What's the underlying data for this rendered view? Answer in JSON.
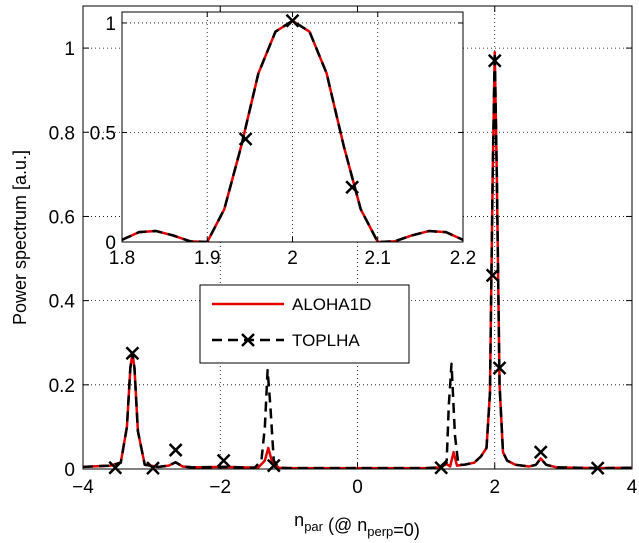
{
  "chart_data": [
    {
      "id": "main",
      "type": "line",
      "xlabel": {
        "base": "n",
        "sub": "par",
        "mid": " (@ n",
        "sub2": "perp",
        "tail": "=0)"
      },
      "ylabel": "Power spectrum [a.u.]",
      "xlim": [
        -4,
        4
      ],
      "ylim": [
        0,
        1.1
      ],
      "grid": true,
      "legend": "center",
      "xticks": [
        -4,
        -2,
        0,
        2,
        4
      ],
      "xtick_labels": [
        "−4",
        "−2",
        "0",
        "2",
        "4"
      ],
      "yticks": [
        0,
        0.2,
        0.4,
        0.6,
        0.8,
        1
      ],
      "ytick_labels": [
        "0",
        "0.2",
        "0.4",
        "0.6",
        "0.8",
        "1"
      ],
      "series": [
        {
          "name": "ALOHA1D",
          "style": "solid",
          "color": "#e00000",
          "x": [
            -4.0,
            -3.6,
            -3.45,
            -3.36,
            -3.31,
            -3.28,
            -3.25,
            -3.2,
            -3.1,
            -2.9,
            -2.75,
            -2.65,
            -2.55,
            -2.4,
            -1.95,
            -1.45,
            -1.35,
            -1.3,
            -1.25,
            -1.15,
            -1.0,
            0.0,
            1.0,
            1.2,
            1.3,
            1.35,
            1.4,
            1.45,
            1.55,
            1.7,
            1.8,
            1.88,
            1.93,
            1.97,
            2.0,
            2.03,
            2.07,
            2.12,
            2.18,
            2.3,
            2.5,
            2.6,
            2.67,
            2.75,
            2.9,
            3.5,
            4.0
          ],
          "y": [
            0.005,
            0.008,
            0.015,
            0.1,
            0.24,
            0.275,
            0.24,
            0.09,
            0.01,
            0.005,
            0.008,
            0.016,
            0.006,
            0.004,
            0.005,
            0.003,
            0.02,
            0.05,
            0.02,
            0.003,
            0.002,
            0.002,
            0.002,
            0.004,
            0.012,
            0.006,
            0.04,
            0.008,
            0.01,
            0.015,
            0.03,
            0.05,
            0.18,
            0.7,
            0.99,
            0.7,
            0.2,
            0.04,
            0.02,
            0.01,
            0.006,
            0.01,
            0.025,
            0.01,
            0.004,
            0.002,
            0.003
          ]
        },
        {
          "name": "TOPLHA",
          "style": "dashed",
          "color": "#000000",
          "marker": "x",
          "x": [
            -4.0,
            -3.6,
            -3.45,
            -3.36,
            -3.31,
            -3.28,
            -3.25,
            -3.2,
            -3.1,
            -2.9,
            -2.75,
            -2.65,
            -2.55,
            -2.4,
            -1.95,
            -1.5,
            -1.4,
            -1.35,
            -1.31,
            -1.27,
            -1.22,
            -1.15,
            -1.0,
            0.0,
            1.0,
            1.2,
            1.3,
            1.33,
            1.37,
            1.42,
            1.47,
            1.55,
            1.7,
            1.8,
            1.88,
            1.93,
            1.97,
            2.0,
            2.03,
            2.07,
            2.12,
            2.18,
            2.3,
            2.5,
            2.6,
            2.67,
            2.75,
            2.9,
            3.5,
            4.0
          ],
          "y": [
            0.005,
            0.008,
            0.015,
            0.1,
            0.24,
            0.275,
            0.24,
            0.09,
            0.01,
            0.005,
            0.008,
            0.016,
            0.006,
            0.004,
            0.005,
            0.003,
            0.02,
            0.1,
            0.235,
            0.15,
            0.02,
            0.003,
            0.002,
            0.002,
            0.002,
            0.004,
            0.02,
            0.15,
            0.25,
            0.08,
            0.01,
            0.01,
            0.015,
            0.03,
            0.05,
            0.18,
            0.7,
            0.99,
            0.7,
            0.2,
            0.04,
            0.02,
            0.01,
            0.006,
            0.01,
            0.025,
            0.01,
            0.004,
            0.002,
            0.003
          ],
          "markers_x": [
            -3.53,
            -3.28,
            -2.98,
            -2.65,
            -1.95,
            -1.22,
            1.22,
            1.97,
            2.0,
            2.07,
            2.67,
            3.5
          ],
          "markers_y": [
            0.003,
            0.275,
            0.002,
            0.045,
            0.02,
            0.008,
            0.003,
            0.46,
            0.97,
            0.24,
            0.04,
            0.002
          ]
        }
      ]
    },
    {
      "id": "inset",
      "type": "line",
      "xlim": [
        1.8,
        2.2
      ],
      "ylim": [
        0,
        1.05
      ],
      "grid": true,
      "xticks": [
        1.8,
        1.9,
        2.0,
        2.1,
        2.2
      ],
      "xtick_labels": [
        "1.8",
        "1.9",
        "2",
        "2.1",
        "2.2"
      ],
      "yticks": [
        0,
        0.5,
        1
      ],
      "ytick_labels": [
        "0",
        "0.5",
        "1"
      ],
      "series": [
        {
          "name": "ALOHA1D",
          "style": "solid",
          "color": "#e00000",
          "x": [
            1.8,
            1.82,
            1.84,
            1.86,
            1.88,
            1.9,
            1.92,
            1.94,
            1.96,
            1.98,
            2.0,
            2.02,
            2.04,
            2.06,
            2.08,
            2.1,
            2.12,
            2.14,
            2.16,
            2.18,
            2.2
          ],
          "y": [
            0.01,
            0.045,
            0.05,
            0.03,
            0.003,
            0.0,
            0.15,
            0.44,
            0.77,
            0.96,
            1.01,
            0.96,
            0.77,
            0.44,
            0.15,
            0.0,
            0.003,
            0.03,
            0.05,
            0.045,
            0.01
          ]
        },
        {
          "name": "TOPLHA",
          "style": "dashed",
          "color": "#000000",
          "marker": "x",
          "x": [
            1.8,
            1.82,
            1.84,
            1.86,
            1.88,
            1.9,
            1.92,
            1.94,
            1.96,
            1.98,
            2.0,
            2.02,
            2.04,
            2.06,
            2.08,
            2.1,
            2.12,
            2.14,
            2.16,
            2.18,
            2.2
          ],
          "y": [
            0.01,
            0.045,
            0.05,
            0.03,
            0.003,
            0.0,
            0.15,
            0.44,
            0.77,
            0.96,
            1.01,
            0.96,
            0.77,
            0.44,
            0.15,
            0.0,
            0.003,
            0.03,
            0.05,
            0.045,
            0.01
          ],
          "markers_x": [
            1.945,
            2.0,
            2.07
          ],
          "markers_y": [
            0.47,
            1.01,
            0.25
          ]
        }
      ]
    }
  ],
  "legend": {
    "items": [
      {
        "label": "ALOHA1D"
      },
      {
        "label": "TOPLHA"
      }
    ]
  }
}
